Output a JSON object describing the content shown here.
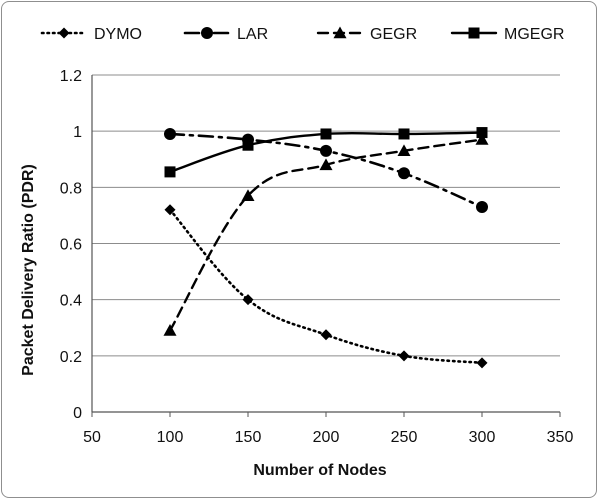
{
  "chart_data": {
    "type": "line",
    "title": "",
    "xlabel": "Number of Nodes",
    "ylabel": "Packet Delivery Ratio (PDR)",
    "xlim": [
      50,
      350
    ],
    "ylim": [
      0,
      1.2
    ],
    "x_ticks": [
      50,
      100,
      150,
      200,
      250,
      300,
      350
    ],
    "y_ticks": [
      0,
      0.2,
      0.4,
      0.6,
      0.8,
      1,
      1.2
    ],
    "y_tick_labels": [
      "0",
      "0.2",
      "0.4",
      "0.6",
      "0.8",
      "1",
      "1.2"
    ],
    "grid": "horizontal",
    "legend_position": "top",
    "x": [
      100,
      150,
      200,
      250,
      300
    ],
    "series": [
      {
        "name": "DYMO",
        "values": [
          0.72,
          0.4,
          0.275,
          0.2,
          0.175
        ],
        "marker": "diamond",
        "line_style": "dotted",
        "color": "#000000"
      },
      {
        "name": "LAR",
        "values": [
          0.99,
          0.97,
          0.93,
          0.85,
          0.73
        ],
        "marker": "circle",
        "line_style": "dash-dot",
        "color": "#000000"
      },
      {
        "name": "GEGR",
        "values": [
          0.29,
          0.77,
          0.88,
          0.93,
          0.97
        ],
        "marker": "triangle",
        "line_style": "dashed",
        "color": "#000000"
      },
      {
        "name": "MGEGR",
        "values": [
          0.855,
          0.95,
          0.99,
          0.99,
          0.995
        ],
        "marker": "square",
        "line_style": "solid",
        "color": "#000000"
      }
    ]
  }
}
